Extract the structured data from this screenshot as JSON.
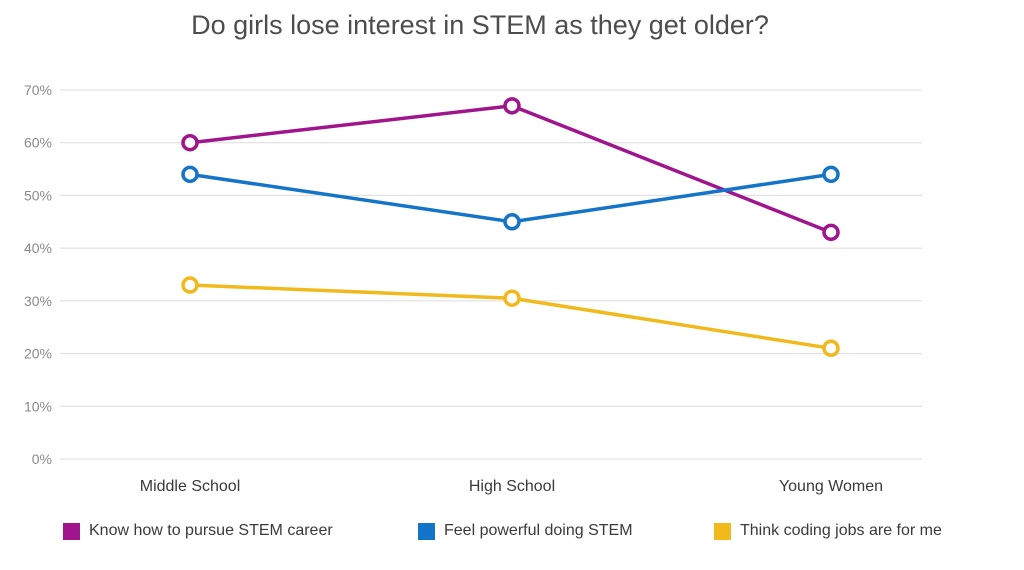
{
  "chart_data": {
    "type": "line",
    "title": "Do girls lose interest in STEM as they get older?",
    "categories": [
      "Middle School",
      "High School",
      "Young Women"
    ],
    "series": [
      {
        "name": "Know how to pursue STEM career",
        "values": [
          60,
          67,
          43
        ],
        "color": "#a0148c"
      },
      {
        "name": "Feel powerful doing STEM",
        "values": [
          54,
          45,
          54
        ],
        "color": "#1374c8"
      },
      {
        "name": "Think coding jobs are for me",
        "values": [
          33,
          30.5,
          21
        ],
        "color": "#f2b91c"
      }
    ],
    "ylim": [
      0,
      70
    ],
    "yticks": [
      "0%",
      "10%",
      "20%",
      "30%",
      "40%",
      "50%",
      "60%",
      "70%"
    ],
    "grid": true,
    "legend_position": "bottom"
  }
}
